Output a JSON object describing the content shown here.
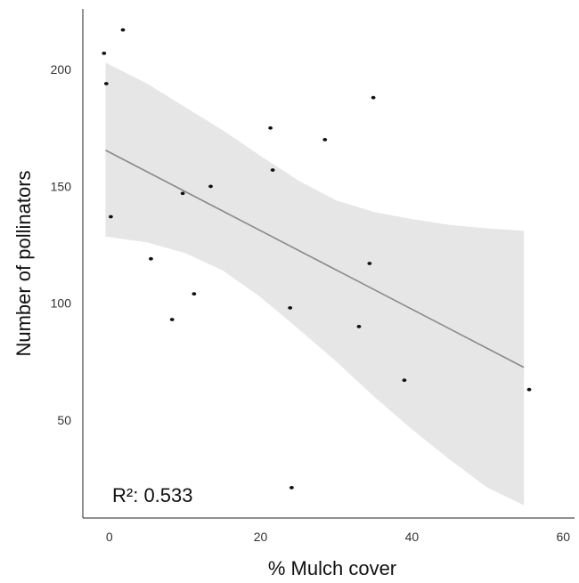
{
  "chart_data": {
    "type": "scatter",
    "title": "",
    "xlabel": "% Mulch cover",
    "ylabel": "Number of pollinators",
    "xlim": [
      -3.5,
      61.5
    ],
    "ylim": [
      8,
      226
    ],
    "x_ticks": [
      0,
      20,
      40,
      60
    ],
    "x_tick_labels": [
      "0",
      "20",
      "40",
      "60"
    ],
    "y_ticks": [
      50,
      100,
      150,
      200
    ],
    "y_tick_labels": [
      "50",
      "100",
      "150",
      "200"
    ],
    "grid": false,
    "points": [
      {
        "x": -0.7,
        "y": 207
      },
      {
        "x": -0.4,
        "y": 194
      },
      {
        "x": 1.8,
        "y": 217
      },
      {
        "x": 0.2,
        "y": 137
      },
      {
        "x": 5.5,
        "y": 119
      },
      {
        "x": 8.3,
        "y": 93
      },
      {
        "x": 9.7,
        "y": 147
      },
      {
        "x": 11.2,
        "y": 104
      },
      {
        "x": 13.4,
        "y": 150
      },
      {
        "x": 21.3,
        "y": 175
      },
      {
        "x": 21.6,
        "y": 157
      },
      {
        "x": 23.9,
        "y": 98
      },
      {
        "x": 24.1,
        "y": 21
      },
      {
        "x": 28.5,
        "y": 170
      },
      {
        "x": 33.0,
        "y": 90
      },
      {
        "x": 34.4,
        "y": 117
      },
      {
        "x": 34.9,
        "y": 188
      },
      {
        "x": 39.0,
        "y": 67
      },
      {
        "x": 55.5,
        "y": 63
      }
    ],
    "fit": {
      "x": [
        -0.5,
        54.8
      ],
      "y": [
        165.5,
        72.5
      ]
    },
    "confidence_band": {
      "x": [
        -0.5,
        5,
        10,
        15,
        20,
        25,
        30,
        35,
        40,
        45,
        50,
        54.8
      ],
      "upper": [
        203,
        194,
        184,
        174,
        163,
        152.5,
        144,
        139,
        136,
        133.5,
        132,
        131
      ],
      "lower": [
        128.5,
        126,
        121.5,
        114,
        102.5,
        89,
        75,
        60,
        46,
        33,
        21,
        13.5
      ]
    },
    "annotation": "R²: 0.533",
    "colors": {
      "points": "#111111",
      "fit_line": "#8a8a8a",
      "band": "#e6e6e6",
      "axes": "#222222"
    }
  }
}
